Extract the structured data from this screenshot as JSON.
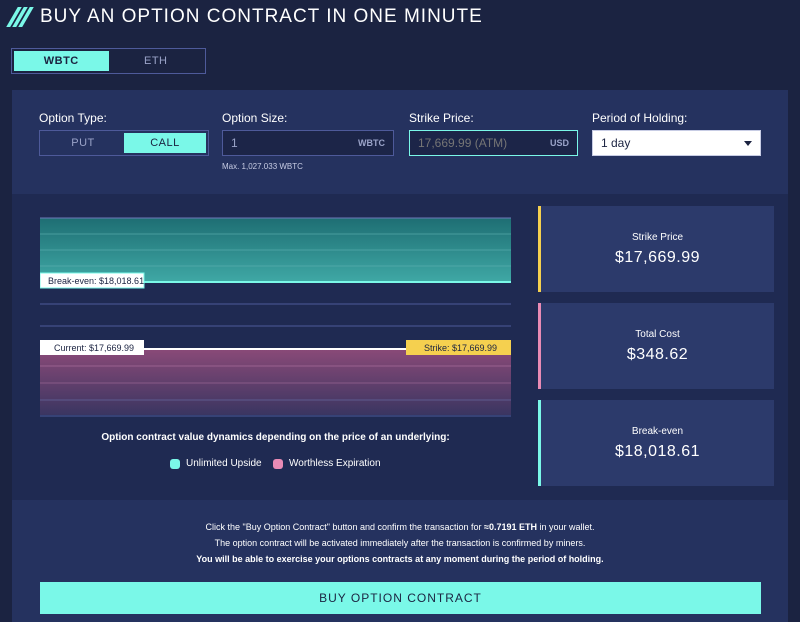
{
  "header": {
    "title": "BUY AN OPTION CONTRACT IN ONE MINUTE"
  },
  "asset_tabs": [
    {
      "label": "WBTC",
      "active": true
    },
    {
      "label": "ETH",
      "active": false
    }
  ],
  "form": {
    "option_type": {
      "label": "Option Type:",
      "options": [
        "PUT",
        "CALL"
      ],
      "selected": "CALL"
    },
    "option_size": {
      "label": "Option Size:",
      "value": "1",
      "unit": "WBTC",
      "hint": "Max. 1,027.033 WBTC"
    },
    "strike_price": {
      "label": "Strike Price:",
      "placeholder": "17,669.99 (ATM)",
      "unit": "USD"
    },
    "period": {
      "label": "Period of Holding:",
      "selected": "1 day"
    }
  },
  "chart": {
    "break_even_label": "Break-even: $18,018.61",
    "current_label": "Current: $17,669.99",
    "strike_label": "Strike: $17,669.99"
  },
  "legend": {
    "title": "Option contract value dynamics depending on the price of an underlying:",
    "items": [
      {
        "label": "Unlimited Upside",
        "color": "#7af8e8"
      },
      {
        "label": "Worthless Expiration",
        "color": "#e98bb5"
      }
    ]
  },
  "stats": [
    {
      "label": "Strike Price",
      "value": "$17,669.99",
      "color": "#f5d04f"
    },
    {
      "label": "Total Cost",
      "value": "$348.62",
      "color": "#e98bb5"
    },
    {
      "label": "Break-even",
      "value": "$18,018.61",
      "color": "#7af8e8"
    }
  ],
  "note": {
    "line1_prefix": "Click the \"Buy Option Contract\" button and confirm the transaction for ",
    "line1_amount": "≈0.7191 ETH",
    "line1_suffix": " in your wallet.",
    "line2": "The option contract will be activated immediately after the transaction is confirmed by miners.",
    "line3": "You will be able to exercise your options contracts at any moment during the period of holding."
  },
  "buy_button": {
    "label": "BUY OPTION CONTRACT"
  },
  "colors": {
    "accent": "#7af8e8",
    "background": "#1b2341",
    "panel": "#24305d",
    "strike": "#f5d04f",
    "cost": "#e98bb5"
  }
}
